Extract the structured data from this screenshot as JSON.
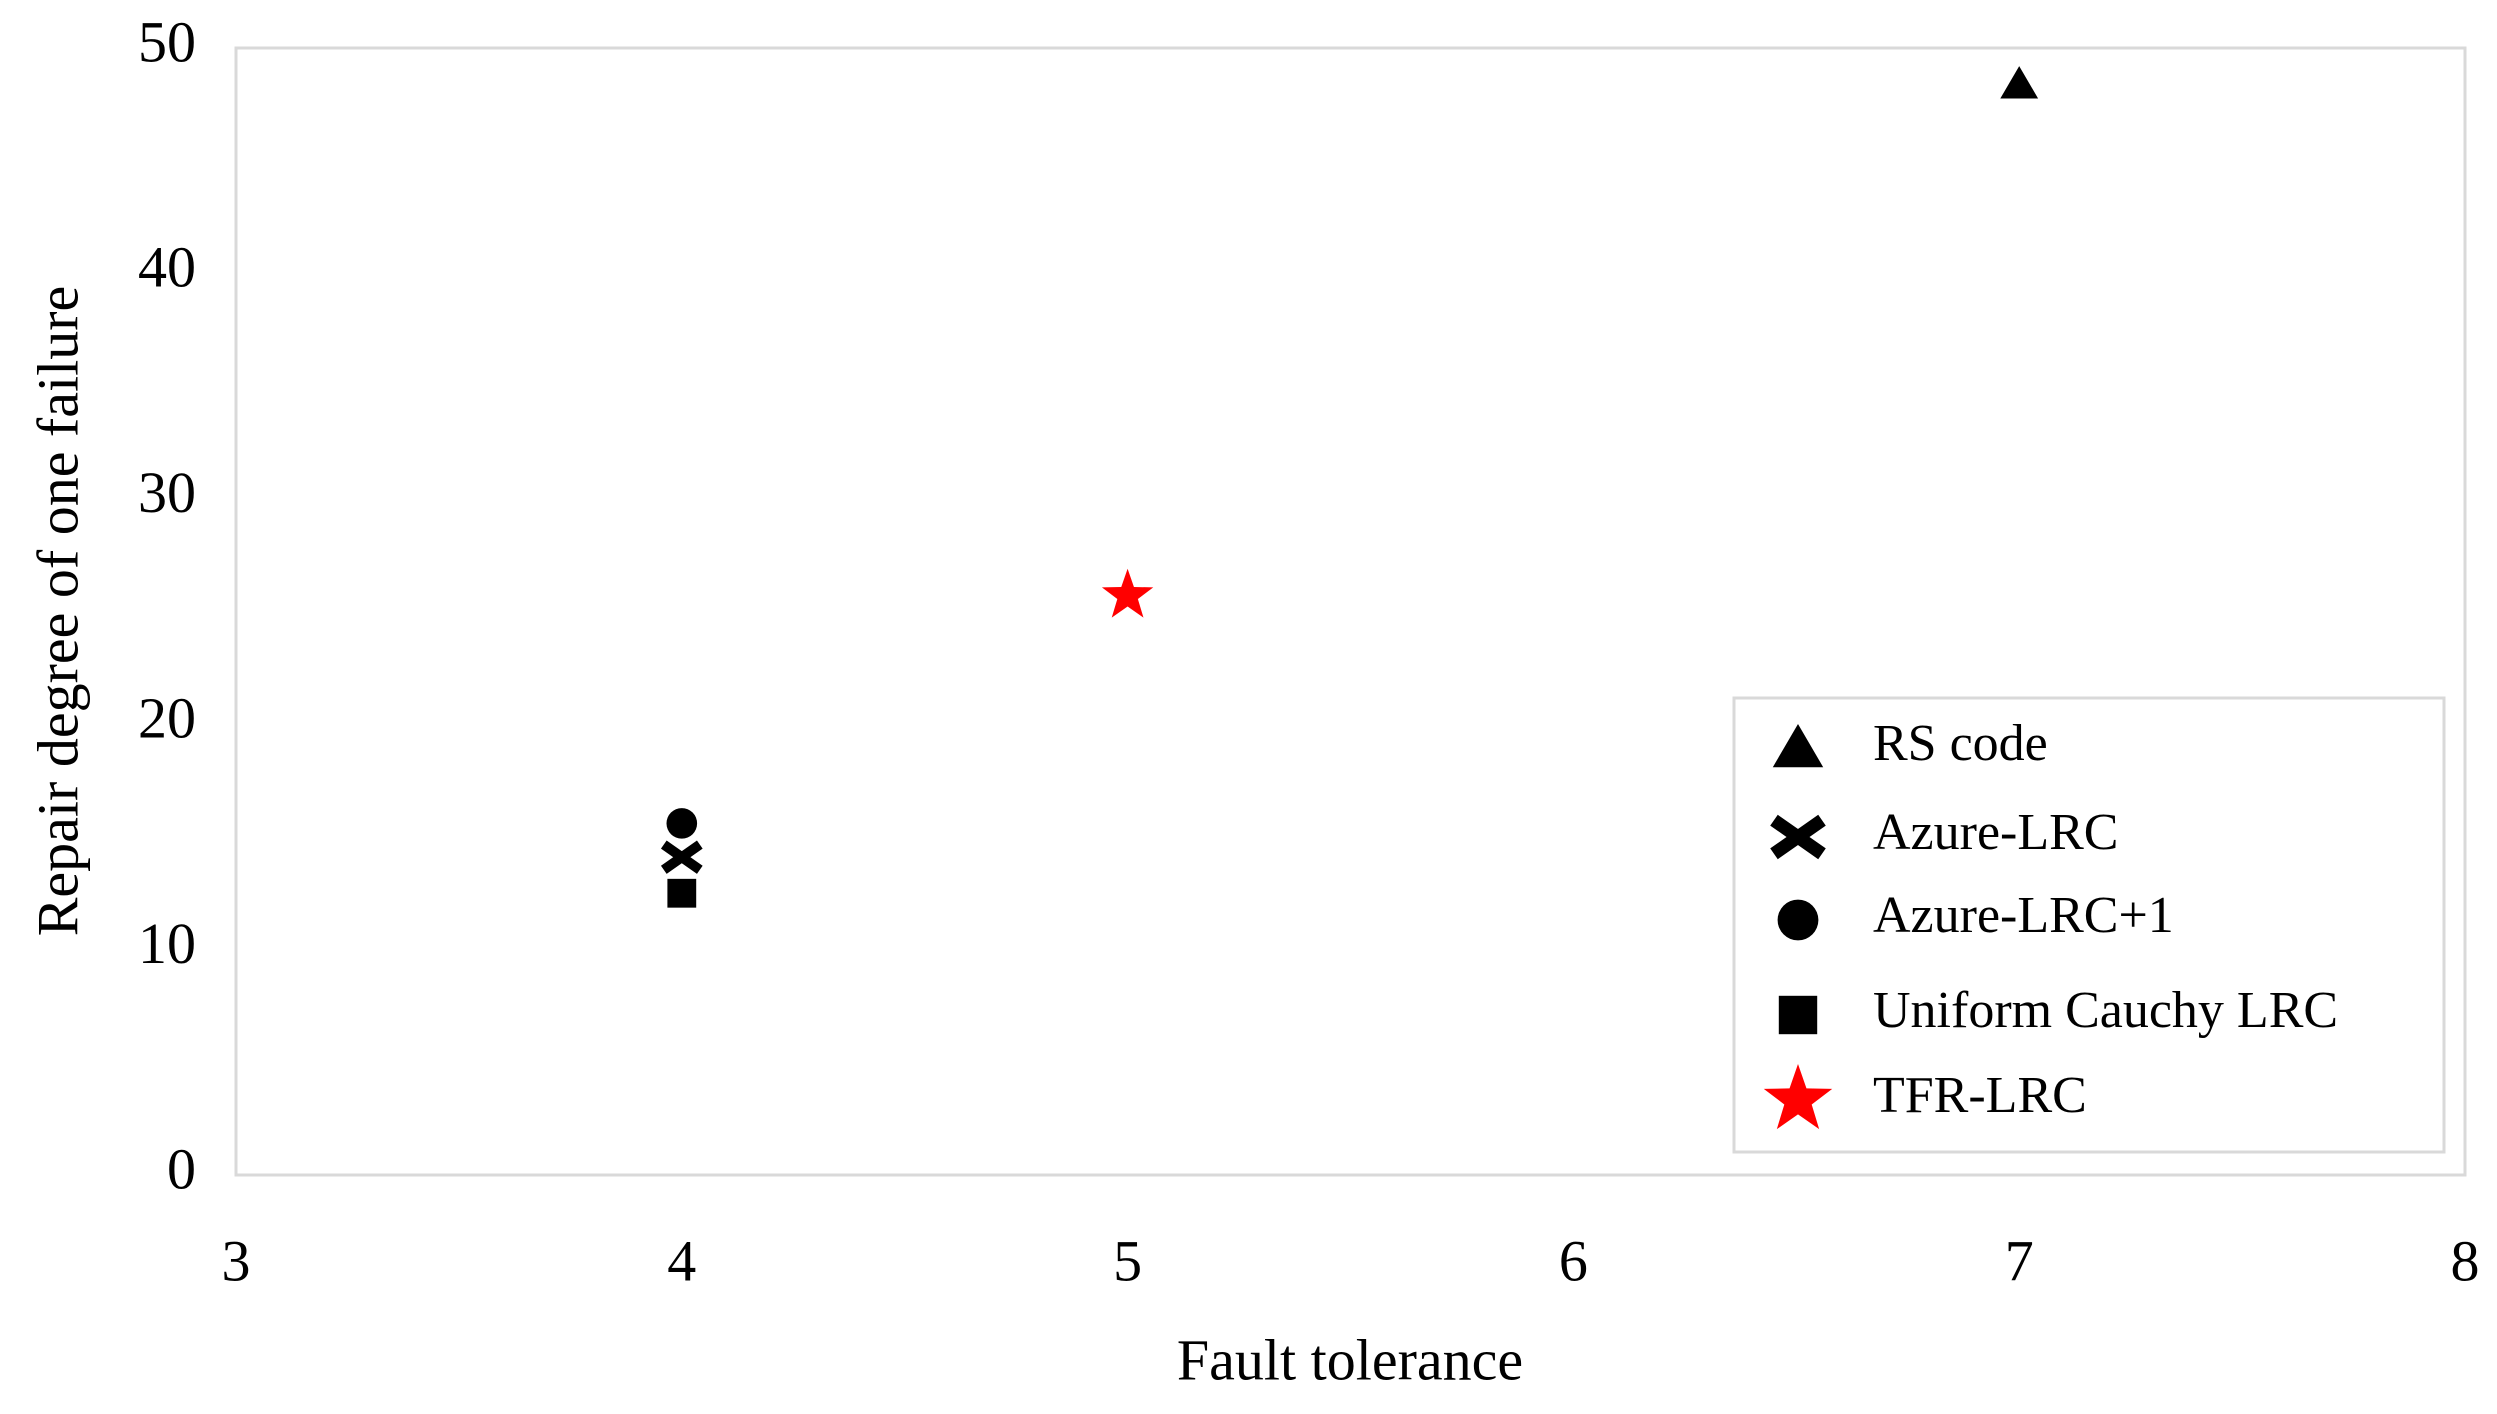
{
  "chart_data": {
    "type": "scatter",
    "x_label": "Fault tolerance",
    "y_label": "Repair degree of one failure",
    "xlim": [
      3,
      8
    ],
    "xticks": [
      3,
      4,
      5,
      6,
      7,
      8
    ],
    "ylim": [
      0,
      50
    ],
    "yticks": [
      0,
      10,
      20,
      30,
      40,
      50
    ],
    "grid": false,
    "legend": "lower right",
    "series": [
      {
        "name": "RS code",
        "color": "#000000",
        "marker": "triangle",
        "x": [
          7
        ],
        "values": [
          48.4
        ]
      },
      {
        "name": "Azure-LRC",
        "color": "#000000",
        "marker": "x",
        "x": [
          4
        ],
        "values": [
          14.1
        ]
      },
      {
        "name": "Azure-LRC+1",
        "color": "#000000",
        "marker": "circle",
        "x": [
          4
        ],
        "values": [
          15.6
        ]
      },
      {
        "name": "Uniform Cauchy LRC",
        "color": "#000000",
        "marker": "square",
        "x": [
          4
        ],
        "values": [
          12.5
        ]
      },
      {
        "name": "TFR-LRC",
        "color": "#ff0000",
        "marker": "star",
        "x": [
          5
        ],
        "values": [
          25.7
        ]
      }
    ]
  }
}
